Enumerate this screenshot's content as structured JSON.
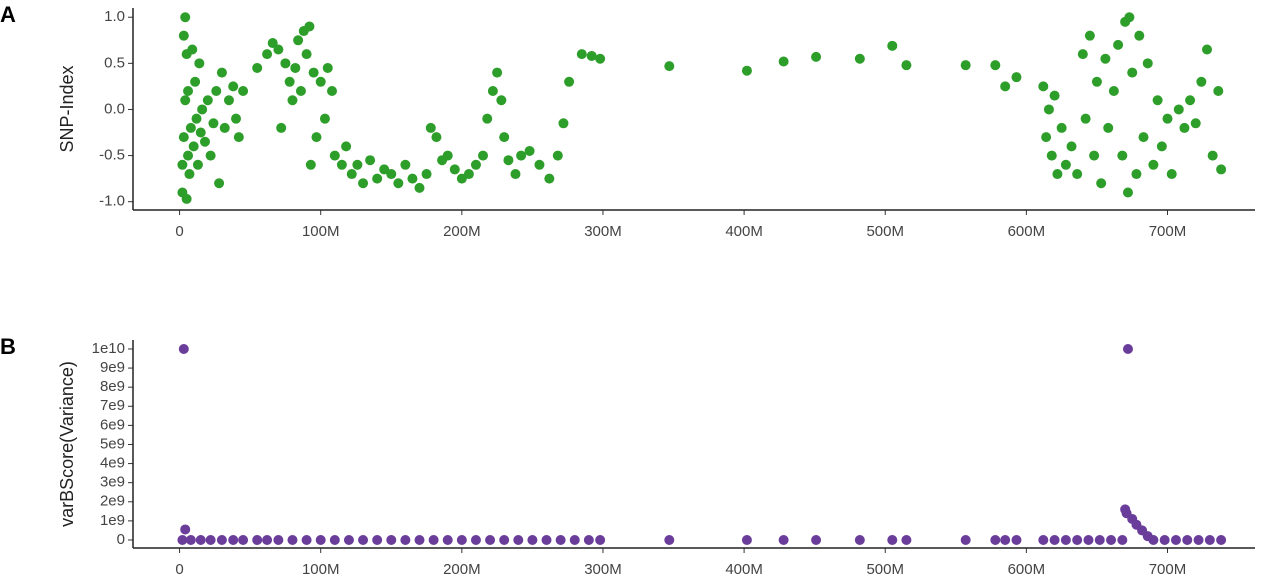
{
  "chart_data": [
    {
      "type": "scatter",
      "panel_label": "A",
      "ylabel": "SNP-Index",
      "color": "#2e9e2a",
      "x": [
        2000000.0,
        2000000.0,
        3000000.0,
        3000000.0,
        4000000.0,
        4000000.0,
        5000000.0,
        5000000.0,
        6000000.0,
        6000000.0,
        7000000.0,
        8000000.0,
        9000000.0,
        10000000.0,
        11000000.0,
        12000000.0,
        13000000.0,
        14000000.0,
        15000000.0,
        16000000.0,
        18000000.0,
        20000000.0,
        22000000.0,
        24000000.0,
        26000000.0,
        28000000.0,
        30000000.0,
        32000000.0,
        35000000.0,
        38000000.0,
        40000000.0,
        42000000.0,
        45000000.0,
        55000000.0,
        62000000.0,
        66000000.0,
        70000000.0,
        72000000.0,
        75000000.0,
        78000000.0,
        80000000.0,
        82000000.0,
        84000000.0,
        86000000.0,
        88000000.0,
        90000000.0,
        92000000.0,
        93000000.0,
        95000000.0,
        97000000.0,
        100000000.0,
        103000000.0,
        105000000.0,
        108000000.0,
        110000000.0,
        115000000.0,
        118000000.0,
        122000000.0,
        126000000.0,
        130000000.0,
        135000000.0,
        140000000.0,
        145000000.0,
        150000000.0,
        155000000.0,
        160000000.0,
        165000000.0,
        170000000.0,
        175000000.0,
        178000000.0,
        182000000.0,
        186000000.0,
        190000000.0,
        195000000.0,
        200000000.0,
        205000000.0,
        210000000.0,
        215000000.0,
        218000000.0,
        222000000.0,
        225000000.0,
        228000000.0,
        230000000.0,
        233000000.0,
        238000000.0,
        242000000.0,
        248000000.0,
        255000000.0,
        262000000.0,
        268000000.0,
        272000000.0,
        276000000.0,
        285000000.0,
        292000000.0,
        298000000.0,
        347000000.0,
        402000000.0,
        428000000.0,
        451000000.0,
        482000000.0,
        505000000.0,
        515000000.0,
        557000000.0,
        578000000.0,
        585000000.0,
        593000000.0,
        612000000.0,
        614000000.0,
        616000000.0,
        618000000.0,
        620000000.0,
        622000000.0,
        625000000.0,
        628000000.0,
        632000000.0,
        636000000.0,
        640000000.0,
        642000000.0,
        645000000.0,
        648000000.0,
        650000000.0,
        653000000.0,
        656000000.0,
        658000000.0,
        662000000.0,
        665000000.0,
        668000000.0,
        670000000.0,
        672000000.0,
        673000000.0,
        675000000.0,
        678000000.0,
        680000000.0,
        683000000.0,
        686000000.0,
        690000000.0,
        693000000.0,
        696000000.0,
        700000000.0,
        703000000.0,
        708000000.0,
        712000000.0,
        716000000.0,
        720000000.0,
        724000000.0,
        728000000.0,
        732000000.0,
        736000000.0,
        738000000.0
      ],
      "values": [
        -0.9,
        -0.6,
        0.8,
        -0.3,
        1.0,
        0.1,
        -0.97,
        0.6,
        -0.5,
        0.2,
        -0.7,
        -0.2,
        0.65,
        -0.4,
        0.3,
        -0.1,
        -0.6,
        0.5,
        -0.25,
        0.0,
        -0.35,
        0.1,
        -0.5,
        -0.15,
        0.2,
        -0.8,
        0.4,
        -0.2,
        0.1,
        0.25,
        -0.1,
        -0.3,
        0.2,
        0.45,
        0.6,
        0.72,
        0.65,
        -0.2,
        0.5,
        0.3,
        0.1,
        0.45,
        0.75,
        0.2,
        0.85,
        0.6,
        0.9,
        -0.6,
        0.4,
        -0.3,
        0.3,
        -0.1,
        0.45,
        0.2,
        -0.5,
        -0.6,
        -0.4,
        -0.7,
        -0.6,
        -0.8,
        -0.55,
        -0.75,
        -0.65,
        -0.7,
        -0.8,
        -0.6,
        -0.75,
        -0.85,
        -0.7,
        -0.2,
        -0.3,
        -0.55,
        -0.5,
        -0.65,
        -0.75,
        -0.7,
        -0.6,
        -0.5,
        -0.1,
        0.2,
        0.4,
        0.1,
        -0.3,
        -0.55,
        -0.7,
        -0.5,
        -0.45,
        -0.6,
        -0.75,
        -0.5,
        -0.15,
        0.3,
        0.6,
        0.58,
        0.55,
        0.47,
        0.42,
        0.52,
        0.57,
        0.55,
        0.69,
        0.48,
        0.48,
        0.48,
        0.25,
        0.35,
        0.25,
        -0.3,
        0.0,
        -0.5,
        0.15,
        -0.7,
        -0.2,
        -0.6,
        -0.4,
        -0.7,
        0.6,
        -0.1,
        0.8,
        -0.5,
        0.3,
        -0.8,
        0.55,
        -0.2,
        0.2,
        0.7,
        -0.5,
        0.95,
        -0.9,
        1.0,
        0.4,
        -0.7,
        0.8,
        -0.3,
        0.5,
        -0.6,
        0.1,
        -0.4,
        -0.1,
        -0.7,
        0.0,
        -0.2,
        0.1,
        -0.15,
        0.3,
        0.65,
        -0.5,
        0.2,
        -0.65
      ],
      "xlim": [
        -33000000.0,
        762000000.0
      ],
      "ylim": [
        -1.09,
        1.1
      ],
      "xticks": [
        0,
        {
          "value": 100000000.0,
          "label": "100M"
        },
        {
          "value": 200000000.0,
          "label": "200M"
        },
        {
          "value": 300000000.0,
          "label": "300M"
        },
        {
          "value": 400000000.0,
          "label": "400M"
        },
        {
          "value": 500000000.0,
          "label": "500M"
        },
        {
          "value": 600000000.0,
          "label": "600M"
        },
        {
          "value": 700000000.0,
          "label": "700M"
        }
      ],
      "yticks": [
        {
          "value": -1,
          "label": "-1.0"
        },
        -0.5,
        {
          "value": 0,
          "label": "0.0"
        },
        0.5,
        {
          "value": 1,
          "label": "1.0"
        }
      ]
    },
    {
      "type": "scatter",
      "panel_label": "B",
      "ylabel": "varBScore(Variance)",
      "color": "#6a3d9a",
      "x": [
        2000000.0,
        3000000.0,
        4000000.0,
        8000000.0,
        15000000.0,
        22000000.0,
        30000000.0,
        38000000.0,
        45000000.0,
        55000000.0,
        62000000.0,
        70000000.0,
        80000000.0,
        90000000.0,
        100000000.0,
        110000000.0,
        120000000.0,
        130000000.0,
        140000000.0,
        150000000.0,
        160000000.0,
        170000000.0,
        180000000.0,
        190000000.0,
        200000000.0,
        210000000.0,
        220000000.0,
        230000000.0,
        240000000.0,
        250000000.0,
        260000000.0,
        270000000.0,
        280000000.0,
        290000000.0,
        298000000.0,
        347000000.0,
        402000000.0,
        428000000.0,
        451000000.0,
        482000000.0,
        505000000.0,
        515000000.0,
        557000000.0,
        578000000.0,
        585000000.0,
        593000000.0,
        612000000.0,
        620000000.0,
        628000000.0,
        636000000.0,
        644000000.0,
        652000000.0,
        660000000.0,
        668000000.0,
        670000000.0,
        671000000.0,
        672000000.0,
        675000000.0,
        678000000.0,
        682000000.0,
        686000000.0,
        690000000.0,
        698000000.0,
        706000000.0,
        714000000.0,
        722000000.0,
        730000000.0,
        738000000.0
      ],
      "values": [
        0,
        10000000000.0,
        550000000.0,
        0,
        0,
        0,
        0,
        0,
        0,
        0,
        0,
        0,
        0,
        0,
        0,
        0,
        0,
        0,
        0,
        0,
        0,
        0,
        0,
        0,
        0,
        0,
        0,
        0,
        0,
        0,
        0,
        0,
        0,
        0,
        0,
        0,
        0,
        0,
        0,
        0,
        0,
        0,
        0,
        0,
        0,
        0,
        0,
        0,
        0,
        0,
        0,
        0,
        0,
        0,
        1600000000.0,
        1400000000.0,
        10000000000.0,
        1100000000.0,
        800000000.0,
        500000000.0,
        200000000.0,
        0,
        0,
        0,
        0,
        0,
        0,
        0
      ],
      "xlim": [
        -33000000.0,
        762000000.0
      ],
      "ylim": [
        -420000000.0,
        10470000000.0
      ],
      "xticks": [
        0,
        {
          "value": 100000000.0,
          "label": "100M"
        },
        {
          "value": 200000000.0,
          "label": "200M"
        },
        {
          "value": 300000000.0,
          "label": "300M"
        },
        {
          "value": 400000000.0,
          "label": "400M"
        },
        {
          "value": 500000000.0,
          "label": "500M"
        },
        {
          "value": 600000000.0,
          "label": "600M"
        },
        {
          "value": 700000000.0,
          "label": "700M"
        }
      ],
      "yticks": [
        0,
        {
          "value": 1000000000.0,
          "label": "1e9"
        },
        {
          "value": 2000000000.0,
          "label": "2e9"
        },
        {
          "value": 3000000000.0,
          "label": "3e9"
        },
        {
          "value": 4000000000.0,
          "label": "4e9"
        },
        {
          "value": 5000000000.0,
          "label": "5e9"
        },
        {
          "value": 6000000000.0,
          "label": "6e9"
        },
        {
          "value": 7000000000.0,
          "label": "7e9"
        },
        {
          "value": 8000000000.0,
          "label": "8e9"
        },
        {
          "value": 9000000000.0,
          "label": "9e9"
        },
        {
          "value": 10000000000.0,
          "label": "1e10"
        }
      ]
    }
  ]
}
